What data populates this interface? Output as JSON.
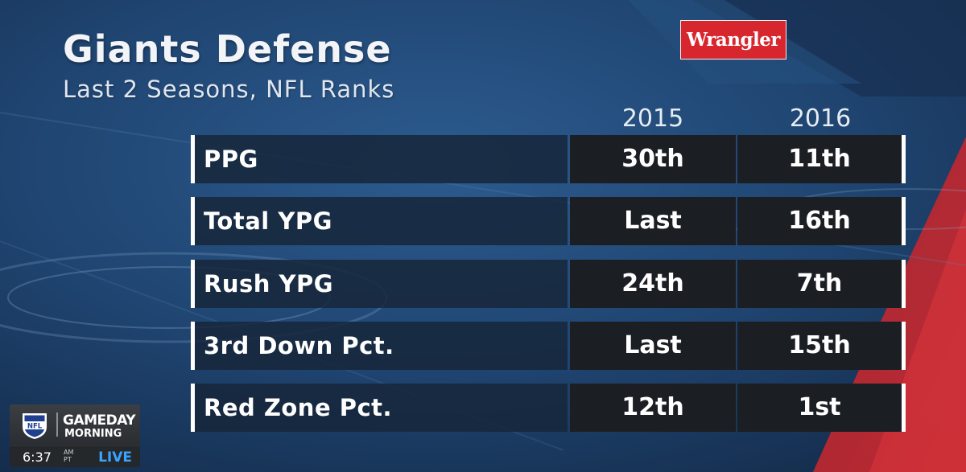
{
  "graphic": {
    "title": "Giants Defense",
    "subtitle": "Last 2 Seasons, NFL Ranks",
    "sponsor": "Wrangler",
    "columns": [
      "2015",
      "2016"
    ],
    "rows": [
      {
        "label": "PPG",
        "values": [
          "30th",
          "11th"
        ]
      },
      {
        "label": "Total YPG",
        "values": [
          "Last",
          "16th"
        ]
      },
      {
        "label": "Rush YPG",
        "values": [
          "24th",
          "7th"
        ]
      },
      {
        "label": "3rd Down Pct.",
        "values": [
          "Last",
          "15th"
        ]
      },
      {
        "label": "Red Zone Pct.",
        "values": [
          "12th",
          "1st"
        ]
      }
    ]
  },
  "bug": {
    "league": "NFL",
    "show_line1": "GAMEDAY",
    "show_line2": "MORNING",
    "time": "6:37",
    "am": "AM",
    "tz": "PT",
    "status": "LIVE"
  },
  "colors": {
    "background_blue": "#1d3d66",
    "accent_red": "#c8232c",
    "sponsor_red": "#d8262f",
    "cell_dark": "#1b1e23",
    "live_blue": "#3aa3ff"
  }
}
